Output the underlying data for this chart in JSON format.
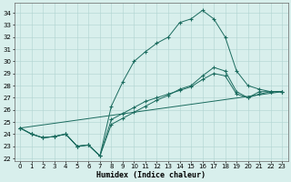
{
  "xlabel": "Humidex (Indice chaleur)",
  "xlim": [
    -0.5,
    23.5
  ],
  "ylim": [
    21.8,
    34.8
  ],
  "yticks": [
    22,
    23,
    24,
    25,
    26,
    27,
    28,
    29,
    30,
    31,
    32,
    33,
    34
  ],
  "xticks": [
    0,
    1,
    2,
    3,
    4,
    5,
    6,
    7,
    8,
    9,
    10,
    11,
    12,
    13,
    14,
    15,
    16,
    17,
    18,
    19,
    20,
    21,
    22,
    23
  ],
  "bg_color": "#d8efec",
  "grid_color": "#b0d4d0",
  "line_color": "#1a6b5e",
  "line1_x": [
    0,
    1,
    2,
    3,
    4,
    5,
    6,
    7,
    8,
    9,
    10,
    11,
    12,
    13,
    14,
    15,
    16,
    17,
    18,
    19,
    20,
    21,
    22,
    23
  ],
  "line1_y": [
    24.5,
    24.0,
    23.7,
    23.8,
    24.0,
    23.0,
    23.1,
    22.2,
    26.3,
    28.3,
    30.0,
    30.8,
    31.5,
    32.0,
    33.2,
    33.5,
    34.2,
    33.5,
    32.0,
    29.2,
    28.0,
    27.7,
    27.5,
    27.5
  ],
  "line2_x": [
    0,
    1,
    2,
    3,
    4,
    5,
    6,
    7,
    8,
    9,
    10,
    11,
    12,
    13,
    14,
    15,
    16,
    17,
    18,
    19,
    20,
    21,
    22,
    23
  ],
  "line2_y": [
    24.5,
    24.0,
    23.7,
    23.8,
    24.0,
    23.0,
    23.1,
    22.2,
    24.8,
    25.3,
    25.8,
    26.3,
    26.8,
    27.2,
    27.7,
    28.0,
    28.8,
    29.5,
    29.2,
    27.5,
    27.0,
    27.5,
    27.5,
    27.5
  ],
  "line3_x": [
    0,
    1,
    2,
    3,
    4,
    5,
    6,
    7,
    8,
    9,
    10,
    11,
    12,
    13,
    14,
    15,
    16,
    17,
    18,
    19,
    20,
    21,
    22,
    23
  ],
  "line3_y": [
    24.5,
    24.0,
    23.7,
    23.8,
    24.0,
    23.0,
    23.1,
    22.2,
    25.2,
    25.7,
    26.2,
    26.7,
    27.0,
    27.3,
    27.6,
    27.9,
    28.5,
    29.0,
    28.8,
    27.3,
    27.0,
    27.3,
    27.5,
    27.5
  ],
  "line4_x": [
    0,
    23
  ],
  "line4_y": [
    24.5,
    27.5
  ]
}
